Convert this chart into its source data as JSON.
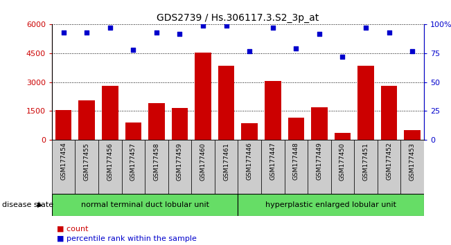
{
  "title": "GDS2739 / Hs.306117.3.S2_3p_at",
  "categories": [
    "GSM177454",
    "GSM177455",
    "GSM177456",
    "GSM177457",
    "GSM177458",
    "GSM177459",
    "GSM177460",
    "GSM177461",
    "GSM177446",
    "GSM177447",
    "GSM177448",
    "GSM177449",
    "GSM177450",
    "GSM177451",
    "GSM177452",
    "GSM177453"
  ],
  "bar_values": [
    1550,
    2050,
    2800,
    900,
    1900,
    1650,
    4550,
    3850,
    850,
    3050,
    1150,
    1700,
    350,
    3850,
    2800,
    500
  ],
  "percentile_values": [
    93,
    93,
    97,
    78,
    93,
    92,
    99,
    99,
    77,
    97,
    79,
    92,
    72,
    97,
    93,
    77
  ],
  "bar_color": "#cc0000",
  "dot_color": "#0000cc",
  "ylim_left": [
    0,
    6000
  ],
  "ylim_right": [
    0,
    100
  ],
  "yticks_left": [
    0,
    1500,
    3000,
    4500,
    6000
  ],
  "yticks_right": [
    0,
    25,
    50,
    75,
    100
  ],
  "ytick_right_labels": [
    "0",
    "25",
    "50",
    "75",
    "100%"
  ],
  "group1_label": "normal terminal duct lobular unit",
  "group2_label": "hyperplastic enlarged lobular unit",
  "group1_count": 8,
  "group2_count": 8,
  "disease_state_label": "disease state",
  "legend_count_label": "count",
  "legend_pct_label": "percentile rank within the sample",
  "group_color": "#66dd66",
  "tick_bg_color": "#cccccc",
  "xlabel_color": "#cc0000",
  "right_axis_color": "#0000cc",
  "bar_width": 0.7,
  "tick_label_fontsize": 6.5,
  "title_fontsize": 10,
  "group_label_fontsize": 8,
  "legend_fontsize": 8,
  "disease_state_fontsize": 8
}
